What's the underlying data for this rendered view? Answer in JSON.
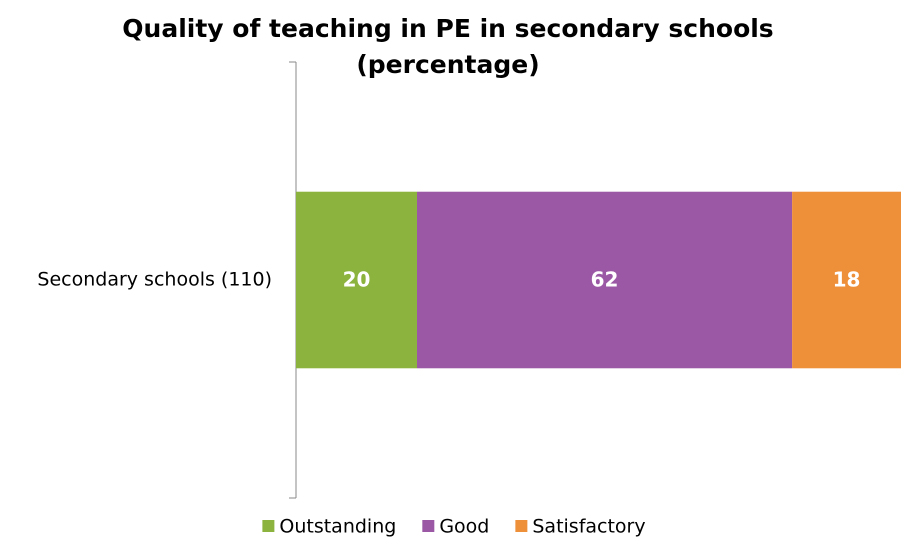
{
  "chart_data": {
    "type": "stacked-bar-horizontal",
    "title": "Quality of teaching in PE in secondary schools",
    "subtitle": "(percentage)",
    "categories": [
      "Secondary schools (110)"
    ],
    "series": [
      {
        "name": "Outstanding",
        "color": "#8db33f",
        "values": [
          20
        ]
      },
      {
        "name": "Good",
        "color": "#9b59a5",
        "values": [
          62
        ]
      },
      {
        "name": "Satisfactory",
        "color": "#ee8f3a",
        "values": [
          18
        ]
      }
    ],
    "xlim": [
      0,
      100
    ],
    "legend": "bottom"
  }
}
